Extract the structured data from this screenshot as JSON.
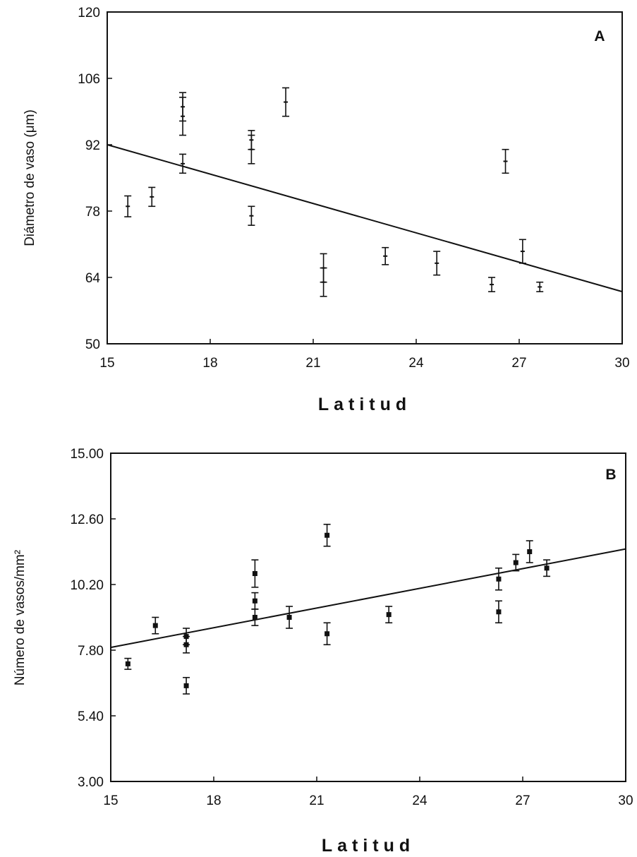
{
  "chart_data": [
    {
      "type": "scatter",
      "panel_label": "A",
      "xlabel": "Latitud",
      "ylabel": "Diámetro de vaso (μm)",
      "xlim": [
        15,
        30
      ],
      "ylim": [
        50,
        120
      ],
      "xticks": [
        "15",
        "18",
        "21",
        "24",
        "27",
        "30"
      ],
      "yticks": [
        "50",
        "64",
        "78",
        "92",
        "106",
        "120"
      ],
      "grid": false,
      "legend": "none",
      "points": [
        {
          "x": 15.6,
          "y": 79.0,
          "err": 2.2
        },
        {
          "x": 16.3,
          "y": 81.0,
          "err": 2.0
        },
        {
          "x": 17.2,
          "y": 98.0,
          "err": 4.0
        },
        {
          "x": 17.2,
          "y": 100.0,
          "err": 3.0
        },
        {
          "x": 17.2,
          "y": 88.0,
          "err": 2.0
        },
        {
          "x": 19.2,
          "y": 91.0,
          "err": 3.0
        },
        {
          "x": 19.2,
          "y": 93.0,
          "err": 2.0
        },
        {
          "x": 19.2,
          "y": 77.0,
          "err": 2.0
        },
        {
          "x": 20.2,
          "y": 101.0,
          "err": 3.0
        },
        {
          "x": 21.3,
          "y": 66.0,
          "err": 3.0
        },
        {
          "x": 21.3,
          "y": 63.0,
          "err": 3.0
        },
        {
          "x": 23.1,
          "y": 68.5,
          "err": 1.8
        },
        {
          "x": 24.6,
          "y": 67.0,
          "err": 2.5
        },
        {
          "x": 26.2,
          "y": 62.5,
          "err": 1.5
        },
        {
          "x": 26.6,
          "y": 88.5,
          "err": 2.5
        },
        {
          "x": 27.1,
          "y": 69.5,
          "err": 2.5
        },
        {
          "x": 27.6,
          "y": 62.0,
          "err": 1.0
        }
      ],
      "trendline": {
        "x": [
          15,
          30
        ],
        "y": [
          92.0,
          61.0
        ]
      }
    },
    {
      "type": "scatter",
      "panel_label": "B",
      "xlabel": "Latitud",
      "ylabel": "Número de vasos/mm²",
      "xlim": [
        15,
        30
      ],
      "ylim": [
        3.0,
        15.0
      ],
      "xticks": [
        "15",
        "18",
        "21",
        "24",
        "27",
        "30"
      ],
      "yticks": [
        "3.00",
        "5.40",
        "7.80",
        "10.20",
        "12.60",
        "15.00"
      ],
      "grid": false,
      "legend": "none",
      "points": [
        {
          "x": 15.5,
          "y": 7.3,
          "err": 0.2
        },
        {
          "x": 16.3,
          "y": 8.7,
          "err": 0.3
        },
        {
          "x": 17.2,
          "y": 8.3,
          "err": 0.3
        },
        {
          "x": 17.2,
          "y": 8.0,
          "err": 0.3
        },
        {
          "x": 17.2,
          "y": 6.5,
          "err": 0.3
        },
        {
          "x": 19.2,
          "y": 10.6,
          "err": 0.5
        },
        {
          "x": 19.2,
          "y": 9.6,
          "err": 0.3
        },
        {
          "x": 19.2,
          "y": 9.0,
          "err": 0.3
        },
        {
          "x": 20.2,
          "y": 9.0,
          "err": 0.4
        },
        {
          "x": 21.3,
          "y": 8.4,
          "err": 0.4
        },
        {
          "x": 21.3,
          "y": 12.0,
          "err": 0.4
        },
        {
          "x": 23.1,
          "y": 9.1,
          "err": 0.3
        },
        {
          "x": 26.3,
          "y": 10.4,
          "err": 0.4
        },
        {
          "x": 26.3,
          "y": 9.2,
          "err": 0.4
        },
        {
          "x": 26.8,
          "y": 11.0,
          "err": 0.3
        },
        {
          "x": 27.2,
          "y": 11.4,
          "err": 0.4
        },
        {
          "x": 27.7,
          "y": 10.8,
          "err": 0.3
        }
      ],
      "trendline": {
        "x": [
          15,
          30
        ],
        "y": [
          7.9,
          11.5
        ]
      }
    }
  ]
}
